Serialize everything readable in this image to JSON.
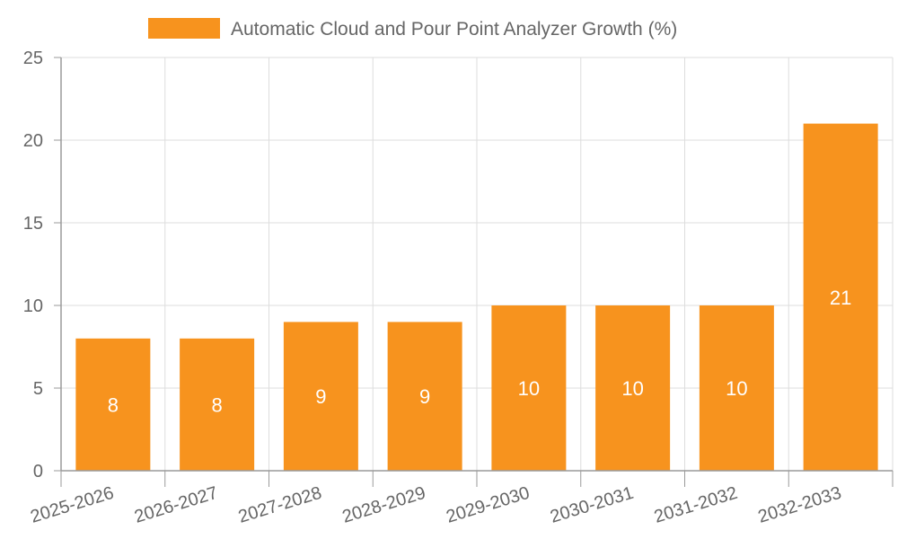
{
  "colors": {
    "bar": "#f7931e",
    "grid": "#dddddd",
    "axis": "#9a9a9a",
    "text": "#666666",
    "data_label": "#ffffff"
  },
  "chart_data": {
    "type": "bar",
    "title": "",
    "xlabel": "",
    "ylabel": "",
    "categories": [
      "2025-2026",
      "2026-2027",
      "2027-2028",
      "2028-2029",
      "2029-2030",
      "2030-2031",
      "2031-2032",
      "2032-2033"
    ],
    "series": [
      {
        "name": "Automatic Cloud and Pour Point Analyzer Growth (%)",
        "values": [
          8,
          8,
          9,
          9,
          10,
          10,
          10,
          21
        ]
      }
    ],
    "ylim": [
      0,
      25
    ],
    "yticks": [
      0,
      5,
      10,
      15,
      20,
      25
    ],
    "grid": true,
    "legend_position": "top-center",
    "data_labels": true
  }
}
